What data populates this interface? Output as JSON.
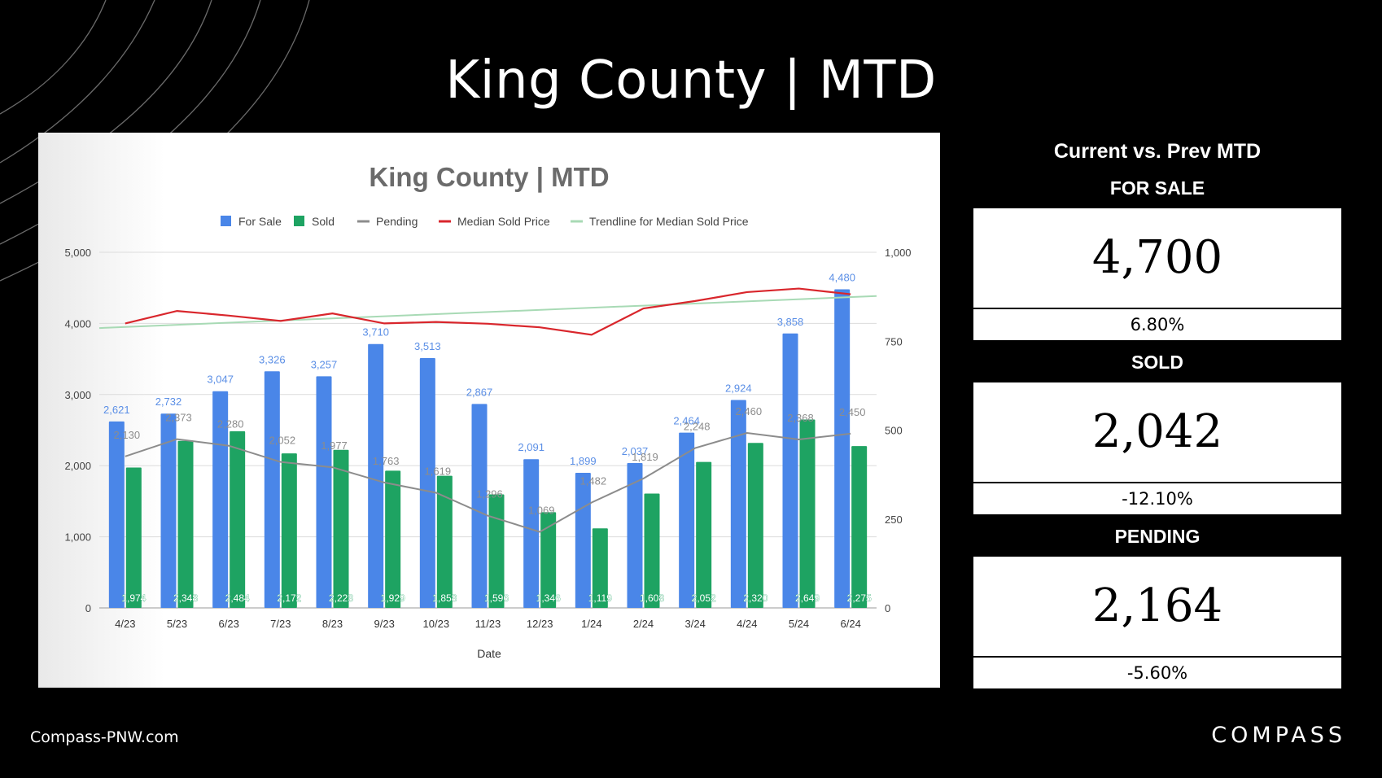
{
  "slide_title": "King County | MTD",
  "comparison": {
    "heading": "Current vs. Prev MTD",
    "metrics": [
      {
        "label": "FOR SALE",
        "value": "4,700",
        "change": "6.80%"
      },
      {
        "label": "SOLD",
        "value": "2,042",
        "change": "-12.10%"
      },
      {
        "label": "PENDING",
        "value": "2,164",
        "change": "-5.60%"
      }
    ]
  },
  "footer": {
    "site": "Compass-PNW.com",
    "logo": "COMPASS"
  },
  "chart_data": {
    "type": "bar",
    "title": "King County | MTD",
    "xlabel": "Date",
    "ylabel": "",
    "ylim": [
      0,
      5000
    ],
    "y_ticks": [
      0,
      1000,
      2000,
      3000,
      4000,
      5000
    ],
    "y_tick_labels": [
      "0",
      "1,000",
      "2,000",
      "3,000",
      "4,000",
      "5,000"
    ],
    "y2lim": [
      0,
      1000
    ],
    "y2_ticks": [
      0,
      250,
      500,
      750,
      1000
    ],
    "y2_tick_labels": [
      "0",
      "250",
      "500",
      "750",
      "1,000"
    ],
    "legend_position": "top",
    "categories": [
      "4/23",
      "5/23",
      "6/23",
      "7/23",
      "8/23",
      "9/23",
      "10/23",
      "11/23",
      "12/23",
      "1/24",
      "2/24",
      "3/24",
      "4/24",
      "5/24",
      "6/24"
    ],
    "series": [
      {
        "name": "For Sale",
        "type": "bar",
        "axis": "left",
        "color": "#4a86e8",
        "values": [
          2621,
          2732,
          3047,
          3326,
          3257,
          3710,
          3513,
          2867,
          2091,
          1899,
          2037,
          2464,
          2924,
          3858,
          4480
        ],
        "labels": [
          "2,621",
          "2,732",
          "3,047",
          "3,326",
          "3,257",
          "3,710",
          "3,513",
          "2,867",
          "2,091",
          "1,899",
          "2,037",
          "2,464",
          "2,924",
          "3,858",
          "4,480"
        ]
      },
      {
        "name": "Sold",
        "type": "bar",
        "axis": "left",
        "color": "#1ea362",
        "values": [
          1974,
          2348,
          2484,
          2172,
          2223,
          1929,
          1858,
          1596,
          1346,
          1119,
          1608,
          2052,
          2320,
          2649,
          2275
        ],
        "labels": [
          "1,974",
          "2,348",
          "2,484",
          "2,172",
          "2,223",
          "1,929",
          "1,858",
          "1,596",
          "1,346",
          "1,119",
          "1,608",
          "2,052",
          "2,320",
          "2,649",
          "2,275"
        ]
      },
      {
        "name": "Pending",
        "type": "line",
        "axis": "left",
        "color": "#8c8c8c",
        "values": [
          2130,
          2373,
          2280,
          2052,
          1977,
          1763,
          1619,
          1296,
          1069,
          1482,
          1819,
          2248,
          2460,
          2368,
          2450
        ],
        "labels": [
          "2,130",
          "2,373",
          "2,280",
          "2,052",
          "1,977",
          "1,763",
          "1,619",
          "1,296",
          "1,069",
          "1,482",
          "1,819",
          "2,248",
          "2,460",
          "2,368",
          "2,450"
        ]
      },
      {
        "name": "Median Sold Price",
        "type": "line",
        "axis": "right",
        "color": "#d9262c",
        "values": [
          800,
          835,
          822,
          807,
          828,
          800,
          804,
          799,
          789,
          768,
          842,
          863,
          888,
          898,
          882
        ]
      },
      {
        "name": "Trendline for Median Sold Price",
        "type": "line",
        "axis": "right",
        "color": "#a8dab5",
        "values": [
          790,
          796,
          802,
          808,
          814,
          820,
          826,
          832,
          838,
          844,
          850,
          856,
          862,
          868,
          874
        ]
      }
    ]
  }
}
